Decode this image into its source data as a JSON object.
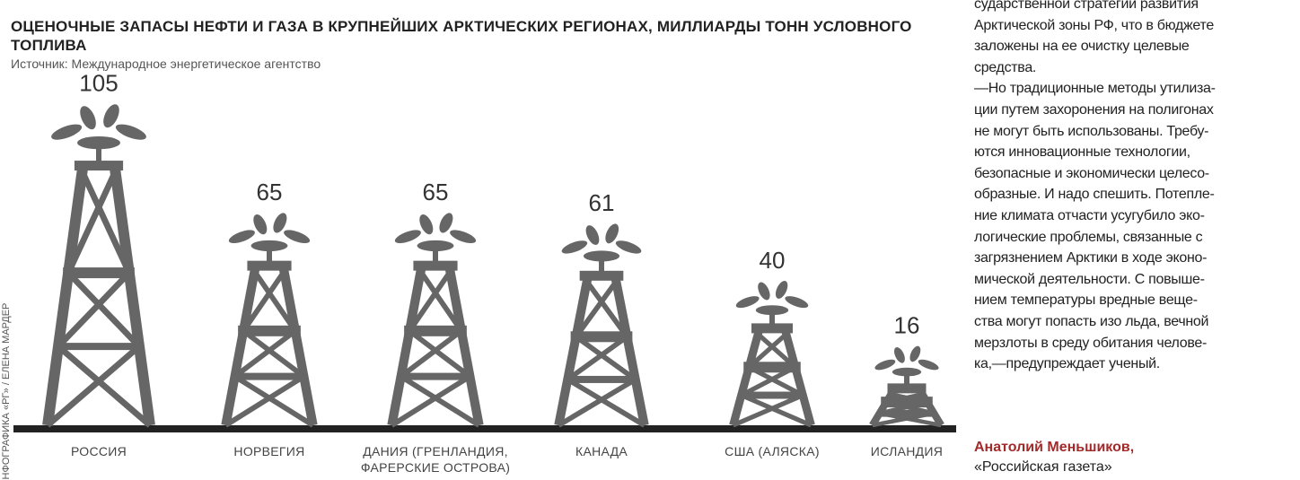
{
  "credit": "ИНФОГРАФИКА «РГ» / ЕЛЕНА МАРДЕР",
  "chart_data": {
    "type": "bar",
    "title": "ОЦЕНОЧНЫЕ ЗАПАСЫ НЕФТИ И ГАЗА В КРУПНЕЙШИХ АРКТИЧЕСКИХ РЕГИОНАХ, МИЛЛИАРДЫ ТОНН УСЛОВНОГО ТОПЛИВА",
    "subtitle": "Источник: Международное энергетическое агентство",
    "categories": [
      "РОССИЯ",
      "НОРВЕГИЯ",
      "ДАНИЯ (ГРЕНЛАНДИЯ, ФАРЕРСКИЕ ОСТРОВА)",
      "КАНАДА",
      "США (АЛЯСКА)",
      "ИСЛАНДИЯ"
    ],
    "values": [
      105,
      65,
      65,
      61,
      40,
      16
    ],
    "color": "#666666"
  },
  "article": {
    "lines": [
      "сударственной стратегии развития",
      "Арктической зоны РФ, что в бюджете",
      "заложены на ее очистку целевые",
      "средства.",
      "—Но традиционные методы утилиза-",
      "ции путем захоронения на полигонах",
      "не могут быть использованы. Требу-",
      "ются инновационные технологии,",
      "безопасные и экономически целесо-",
      "образные. И надо спешить. Потепле-",
      "ние климата отчасти усугубило эко-",
      "логические проблемы, связанные с",
      "загрязнением Арктики в ходе эконо-",
      "мической деятельности. С повыше-",
      "нием температуры вредные веще-",
      "ства могут попасть изо льда, вечной",
      "мерзлоты в среду обитания челове-",
      "ка,—предупреждает ученый."
    ],
    "author": "Анатолий Меньшиков,",
    "outlet": "«Российская газета»"
  }
}
